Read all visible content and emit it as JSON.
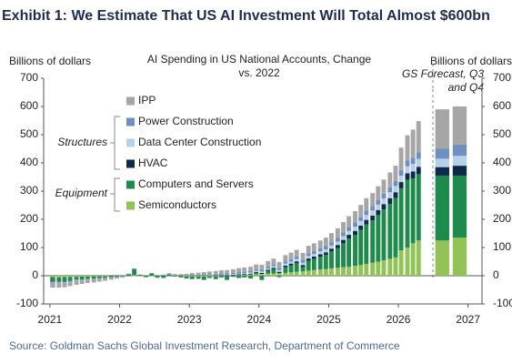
{
  "chart_data": {
    "type": "stacked-bar",
    "title": "Exhibit 1: We Estimate That US AI Investment Will Total Almost $600bn",
    "subtitle": "AI Spending in US National Accounts, Change vs. 2022",
    "y_label": "Billions of dollars",
    "y2_label": "Billions of dollars",
    "annotations": {
      "forecast": "GS Forecast, Q3 and Q4",
      "structures": "Structures",
      "equipment": "Equipment"
    },
    "source": "Source: Goldman Sachs Global Investment Research, Department of Commerce",
    "x": [
      2021.04,
      2021.13,
      2021.21,
      2021.29,
      2021.38,
      2021.46,
      2021.54,
      2021.63,
      2021.71,
      2021.79,
      2021.88,
      2021.96,
      2022.04,
      2022.13,
      2022.21,
      2022.29,
      2022.38,
      2022.46,
      2022.54,
      2022.63,
      2022.71,
      2022.79,
      2022.88,
      2022.96,
      2023.04,
      2023.13,
      2023.21,
      2023.29,
      2023.38,
      2023.46,
      2023.54,
      2023.63,
      2023.71,
      2023.79,
      2023.88,
      2023.96,
      2024.04,
      2024.13,
      2024.21,
      2024.29,
      2024.38,
      2024.46,
      2024.54,
      2024.63,
      2024.71,
      2024.79,
      2024.88,
      2024.96,
      2025.04,
      2025.13,
      2025.21,
      2025.29,
      2025.38,
      2025.46,
      2025.54,
      2025.63,
      2025.71,
      2025.79,
      2025.88,
      2025.96,
      2026.04,
      2026.13,
      2026.21,
      2026.29,
      2026.63,
      2026.88
    ],
    "xlim": [
      2020.91,
      2027.2
    ],
    "xticks": [
      2021,
      2022,
      2023,
      2024,
      2025,
      2026,
      2027
    ],
    "ylim": [
      -100,
      700
    ],
    "yticks": [
      -100,
      0,
      100,
      200,
      300,
      400,
      500,
      600,
      700
    ],
    "y2lim": [
      -100,
      700
    ],
    "y2ticks": [
      -100,
      0,
      100,
      200,
      300,
      400,
      500,
      600,
      700
    ],
    "series": [
      {
        "name": "Semiconductors",
        "color": "#92c356",
        "values": [
          -5,
          -6,
          -5,
          -4,
          -4,
          -3,
          -3,
          -2,
          -2,
          -2,
          -1,
          -1,
          0,
          1,
          2,
          1,
          0,
          -1,
          -1,
          0,
          1,
          0,
          -1,
          -2,
          -2,
          -3,
          -3,
          -2,
          -2,
          -1,
          0,
          1,
          2,
          3,
          4,
          5,
          6,
          7,
          8,
          9,
          10,
          12,
          14,
          16,
          18,
          20,
          22,
          24,
          26,
          28,
          30,
          32,
          35,
          38,
          42,
          46,
          50,
          55,
          60,
          65,
          90,
          100,
          115,
          125,
          125,
          135
        ]
      },
      {
        "name": "Computers and Servers",
        "color": "#1e8a4c",
        "values": [
          -15,
          -14,
          -15,
          -12,
          -10,
          -10,
          -8,
          -8,
          -6,
          -5,
          -5,
          -3,
          -2,
          5,
          22,
          3,
          -5,
          8,
          -6,
          -8,
          4,
          -3,
          -5,
          -8,
          -10,
          -8,
          -12,
          -6,
          -10,
          -5,
          -15,
          -4,
          -8,
          -6,
          -10,
          5,
          -15,
          10,
          15,
          -5,
          20,
          25,
          30,
          15,
          35,
          40,
          45,
          50,
          60,
          70,
          85,
          100,
          110,
          125,
          140,
          150,
          165,
          180,
          195,
          210,
          220,
          240,
          230,
          235,
          230,
          220
        ]
      },
      {
        "name": "HVAC",
        "color": "#0d2a4a",
        "values": [
          -2,
          -2,
          -2,
          -2,
          -1,
          -1,
          -1,
          -1,
          -1,
          -1,
          0,
          0,
          0,
          0,
          0,
          0,
          0,
          0,
          0,
          0,
          0,
          0,
          0,
          0,
          1,
          1,
          1,
          1,
          2,
          2,
          2,
          2,
          3,
          3,
          3,
          3,
          4,
          4,
          5,
          5,
          6,
          6,
          7,
          7,
          8,
          8,
          9,
          9,
          10,
          11,
          12,
          13,
          14,
          15,
          16,
          17,
          18,
          19,
          20,
          21,
          22,
          23,
          25,
          26,
          30,
          35
        ]
      },
      {
        "name": "Data Center Construction",
        "color": "#b7d0ea",
        "values": [
          -2,
          -2,
          -2,
          -2,
          -2,
          -1,
          -1,
          -1,
          -1,
          -1,
          -1,
          0,
          0,
          0,
          1,
          0,
          0,
          0,
          1,
          0,
          0,
          1,
          0,
          0,
          1,
          1,
          1,
          2,
          2,
          2,
          2,
          3,
          3,
          3,
          4,
          4,
          5,
          5,
          6,
          6,
          7,
          7,
          8,
          8,
          9,
          9,
          10,
          10,
          11,
          12,
          13,
          14,
          15,
          16,
          17,
          18,
          19,
          20,
          21,
          22,
          23,
          25,
          26,
          28,
          30,
          35
        ]
      },
      {
        "name": "Power Construction",
        "color": "#6f8fc0",
        "values": [
          -3,
          -3,
          -3,
          -3,
          -2,
          -2,
          -2,
          -2,
          -2,
          -1,
          -1,
          -1,
          0,
          1,
          1,
          0,
          1,
          1,
          0,
          1,
          1,
          1,
          1,
          2,
          2,
          2,
          3,
          3,
          3,
          4,
          4,
          4,
          5,
          5,
          5,
          6,
          6,
          7,
          7,
          8,
          8,
          9,
          9,
          10,
          10,
          11,
          11,
          12,
          12,
          13,
          14,
          14,
          15,
          15,
          16,
          16,
          17,
          17,
          18,
          18,
          19,
          20,
          22,
          24,
          35,
          40
        ]
      },
      {
        "name": "IPP",
        "color": "#a6a6a6",
        "values": [
          -15,
          -15,
          -14,
          -14,
          -13,
          -12,
          -11,
          -10,
          -9,
          -8,
          -6,
          -5,
          -4,
          -3,
          -2,
          -1,
          0,
          1,
          2,
          3,
          3,
          4,
          5,
          5,
          6,
          7,
          8,
          9,
          10,
          11,
          12,
          13,
          14,
          15,
          16,
          17,
          18,
          19,
          20,
          21,
          22,
          23,
          24,
          25,
          26,
          27,
          28,
          30,
          32,
          34,
          36,
          38,
          40,
          42,
          44,
          46,
          48,
          50,
          52,
          54,
          80,
          90,
          100,
          110,
          140,
          135
        ]
      }
    ]
  }
}
